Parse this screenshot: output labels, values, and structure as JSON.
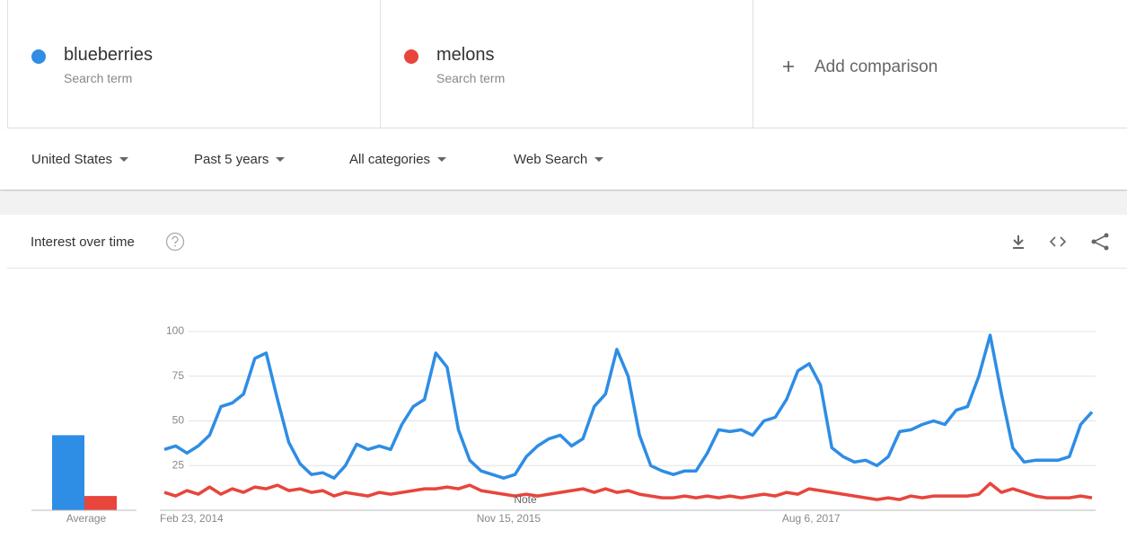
{
  "header": {
    "term_label": "Search term",
    "add_comparison": "Add comparison"
  },
  "filters": [
    "United States",
    "Past 5 years",
    "All categories",
    "Web Search"
  ],
  "card": {
    "title": "Interest over time"
  },
  "chart_data": {
    "type": "line",
    "categories": [
      "Feb 23, 2014",
      null,
      null,
      null,
      null,
      null,
      null,
      null,
      null,
      null,
      null,
      null,
      null,
      null,
      null,
      null,
      null,
      null,
      null,
      null,
      null,
      null,
      null,
      null,
      null,
      null,
      null,
      null,
      "Nov 15, 2015",
      null,
      null,
      null,
      null,
      null,
      null,
      null,
      null,
      null,
      null,
      null,
      null,
      null,
      null,
      null,
      null,
      null,
      null,
      null,
      null,
      null,
      null,
      null,
      null,
      null,
      null,
      "Aug 6, 2017",
      null,
      null,
      null,
      null,
      null,
      null,
      null,
      null,
      null,
      null,
      null,
      null,
      null,
      null,
      null,
      null,
      null,
      null,
      null,
      null,
      null,
      null,
      null,
      null,
      null,
      null,
      null
    ],
    "series": [
      {
        "name": "blueberries",
        "color": "#2e8de5",
        "values": [
          34,
          36,
          32,
          36,
          42,
          58,
          60,
          65,
          85,
          88,
          62,
          38,
          26,
          20,
          21,
          18,
          25,
          37,
          34,
          36,
          34,
          48,
          58,
          62,
          88,
          80,
          45,
          28,
          22,
          20,
          18,
          20,
          30,
          36,
          40,
          42,
          36,
          40,
          58,
          65,
          90,
          75,
          42,
          25,
          22,
          20,
          22,
          22,
          32,
          45,
          44,
          45,
          42,
          50,
          52,
          62,
          78,
          82,
          70,
          35,
          30,
          27,
          28,
          25,
          30,
          44,
          45,
          48,
          50,
          48,
          56,
          58,
          75,
          98,
          65,
          35,
          27,
          28,
          28,
          28,
          30,
          48,
          55
        ]
      },
      {
        "name": "melons",
        "color": "#e8453c",
        "values": [
          10,
          8,
          11,
          9,
          13,
          9,
          12,
          10,
          13,
          12,
          14,
          11,
          12,
          10,
          11,
          8,
          10,
          9,
          8,
          10,
          9,
          10,
          11,
          12,
          12,
          13,
          12,
          14,
          11,
          10,
          9,
          8,
          9,
          8,
          9,
          10,
          11,
          12,
          10,
          12,
          10,
          11,
          9,
          8,
          7,
          7,
          8,
          7,
          8,
          7,
          8,
          7,
          8,
          9,
          8,
          10,
          9,
          12,
          11,
          10,
          9,
          8,
          7,
          6,
          7,
          6,
          8,
          7,
          8,
          8,
          8,
          8,
          9,
          15,
          10,
          12,
          10,
          8,
          7,
          7,
          7,
          8,
          7
        ]
      }
    ],
    "averages": [
      42,
      8
    ],
    "average_label": "Average",
    "ylim": [
      0,
      100
    ],
    "yticks": [
      25,
      50,
      75,
      100
    ],
    "grid": true,
    "annotation": "Note"
  }
}
